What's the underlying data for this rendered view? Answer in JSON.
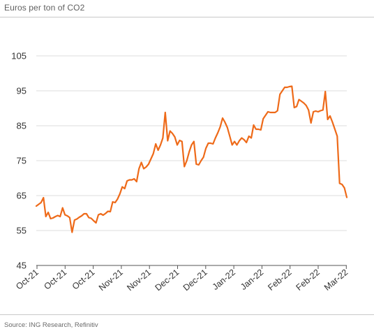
{
  "header": {
    "unit_label": "Euros per ton of CO2"
  },
  "footer": {
    "source": "Source: ING Research, Refinitiv"
  },
  "chart_data": {
    "type": "line",
    "title": "",
    "xlabel": "",
    "ylabel": "Euros per ton of CO2",
    "ylim": [
      45,
      105
    ],
    "y_ticks": [
      45,
      55,
      65,
      75,
      85,
      95,
      105
    ],
    "x_tick_labels": [
      "Oct-21",
      "Oct-21",
      "Oct-21",
      "Nov-21",
      "Nov-21",
      "Dec-21",
      "Dec-21",
      "Jan-22",
      "Jan-22",
      "Feb-22",
      "Feb-22",
      "Mar-22"
    ],
    "grid": "horizontal",
    "series_color": "#ee6a19",
    "series": [
      {
        "values": [
          62.0,
          62.5,
          63.0,
          64.4,
          59.0,
          60.2,
          58.4,
          58.6,
          59.0,
          59.3,
          59.0,
          61.5,
          59.5,
          59.2,
          58.7,
          54.5,
          58.0,
          58.3,
          58.8,
          59.2,
          59.8,
          59.8,
          58.7,
          58.5,
          57.8,
          57.2,
          59.5,
          59.8,
          59.4,
          59.9,
          60.5,
          60.4,
          63.2,
          63.0,
          64.0,
          65.5,
          67.5,
          67.0,
          69.2,
          69.5,
          69.5,
          69.8,
          69.0,
          72.7,
          74.5,
          72.7,
          73.2,
          74.0,
          75.5,
          77.0,
          79.8,
          78.0,
          79.5,
          81.5,
          88.8,
          80.7,
          83.5,
          82.8,
          81.8,
          79.5,
          80.8,
          80.5,
          73.3,
          75.0,
          77.5,
          79.5,
          80.5,
          74.0,
          73.8,
          75.0,
          76.0,
          78.5,
          80.0,
          80.0,
          79.8,
          81.5,
          83.0,
          84.7,
          87.2,
          86.0,
          84.5,
          82.0,
          79.5,
          80.5,
          79.5,
          80.7,
          81.5,
          81.0,
          80.2,
          82.0,
          81.5,
          85.2,
          84.0,
          84.0,
          83.8,
          87.0,
          88.0,
          89.0,
          88.8,
          88.8,
          88.8,
          89.3,
          94.0,
          95.0,
          96.0,
          96.0,
          96.2,
          96.3,
          90.2,
          90.5,
          92.5,
          92.0,
          91.5,
          90.8,
          89.5,
          85.8,
          89.0,
          89.2,
          89.0,
          89.3,
          89.5,
          94.8,
          86.8,
          87.8,
          86.0,
          84.0,
          82.0,
          68.5,
          68.2,
          67.2,
          64.5
        ]
      }
    ]
  }
}
